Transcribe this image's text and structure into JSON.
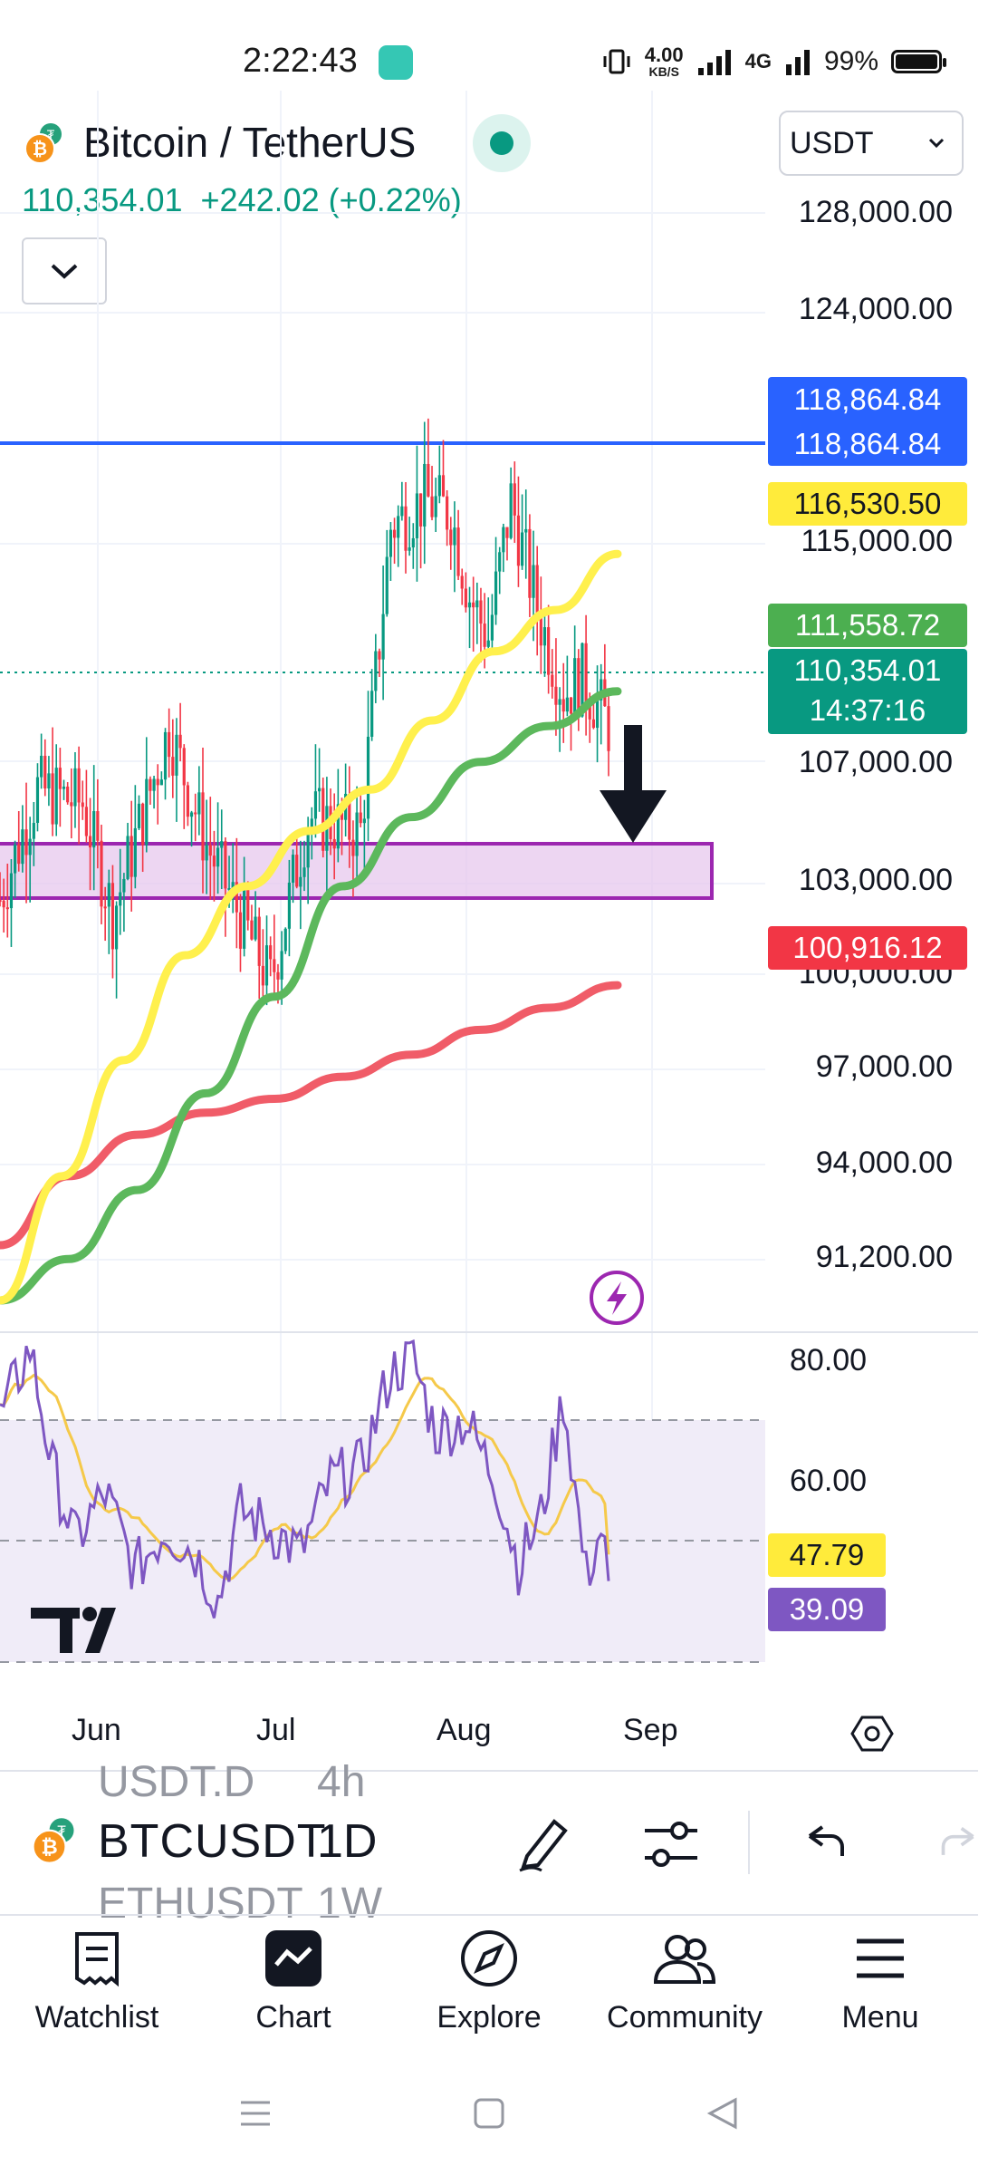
{
  "status_bar": {
    "time": "2:22:43",
    "net_speed": "4.00",
    "net_unit": "KB/S",
    "signal": "4G",
    "battery": "99%"
  },
  "header": {
    "title": "Bitcoin / TetherUS",
    "currency": "USDT",
    "last_price": "110,354.01",
    "change": "+242.02 (+0.22%)"
  },
  "price_axis": [
    "128,000.00",
    "124,000.00",
    "115,000.00",
    "107,000.00",
    "103,000.00",
    "100,000.00",
    "97,000.00",
    "94,000.00",
    "91,200.00"
  ],
  "price_badges": {
    "hline_top": "118,864.84",
    "hline_bottom": "118,864.84",
    "ma_yellow": "116,530.50",
    "ma_green": "111,558.72",
    "last": "110,354.01",
    "countdown": "14:37:16",
    "ma_red": "100,916.12"
  },
  "rsi_axis": [
    "80.00",
    "60.00"
  ],
  "rsi_badges": {
    "rsi_ma": "47.79",
    "rsi": "39.09"
  },
  "time_axis": [
    "Jun",
    "Jul",
    "Aug",
    "Sep"
  ],
  "toolbar": {
    "symbol": "BTCUSDT",
    "symbol_prev": "USDT.D",
    "symbol_next": "ETHUSDT",
    "interval": "1D",
    "interval_prev": "4h",
    "interval_next": "1W"
  },
  "nav": [
    {
      "label": "Watchlist",
      "icon": "watchlist-icon"
    },
    {
      "label": "Chart",
      "icon": "chart-icon"
    },
    {
      "label": "Explore",
      "icon": "compass-icon"
    },
    {
      "label": "Community",
      "icon": "community-icon"
    },
    {
      "label": "Menu",
      "icon": "menu-icon"
    }
  ],
  "colors": {
    "up": "#089981",
    "down": "#f23645",
    "hline": "#2962ff",
    "ma_yellow": "#ffeb3b",
    "ma_green": "#4caf50",
    "ma_red": "#f23645",
    "rsi": "#7e57c2",
    "zone": "#9c27b0"
  },
  "chart_data": {
    "type": "candlestick",
    "symbol": "Bitcoin / TetherUS",
    "interval": "1D",
    "x_ticks": [
      "Jun",
      "Jul",
      "Aug",
      "Sep"
    ],
    "ylim": [
      89500,
      131500
    ],
    "hline": 118864.84,
    "zone": [
      103000,
      105200
    ],
    "series": [
      {
        "type": "ma",
        "values_approx": [
          89500,
          94000,
          98200,
          102000,
          104500,
          106500,
          108000,
          110500,
          113000,
          114500,
          116530
        ]
      },
      {
        "type": "ma",
        "values_approx": [
          89500,
          91000,
          93500,
          97000,
          100500,
          104500,
          107000,
          109000,
          110300,
          111558
        ]
      },
      {
        "type": "ma",
        "values_approx": [
          91500,
          94000,
          95500,
          96300,
          96800,
          97600,
          98400,
          99300,
          100100,
          100916
        ]
      }
    ],
    "rsi": {
      "levels": [
        70,
        50,
        30
      ],
      "value": 39.09,
      "ma_value": 47.79,
      "ylim": [
        26,
        86
      ]
    }
  }
}
